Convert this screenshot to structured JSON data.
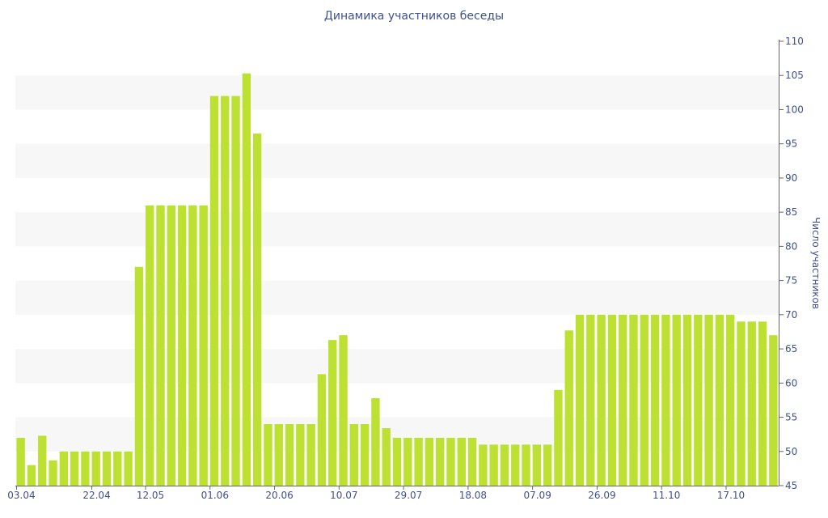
{
  "colors": {
    "bar": "#bde132",
    "band": "#f7f7f7",
    "axis_text": "#3f4f8f",
    "axis_line": "#666666"
  },
  "chart_data": {
    "type": "bar",
    "title": "Динамика участников беседы",
    "ylabel": "Число участников",
    "xlabel": "",
    "ylim": [
      45,
      110
    ],
    "y_ticks": [
      45,
      50,
      55,
      60,
      65,
      70,
      75,
      80,
      85,
      90,
      95,
      100,
      105,
      110
    ],
    "y_axis_position": "right",
    "grid": "alternating-bands",
    "x_tick_labels": [
      {
        "label": "03.04",
        "index": 0
      },
      {
        "label": "22.04",
        "index": 7
      },
      {
        "label": "12.05",
        "index": 12
      },
      {
        "label": "01.06",
        "index": 18
      },
      {
        "label": "20.06",
        "index": 24
      },
      {
        "label": "10.07",
        "index": 30
      },
      {
        "label": "29.07",
        "index": 36
      },
      {
        "label": "18.08",
        "index": 42
      },
      {
        "label": "07.09",
        "index": 48
      },
      {
        "label": "26.09",
        "index": 54
      },
      {
        "label": "11.10",
        "index": 60
      },
      {
        "label": "17.10",
        "index": 66
      }
    ],
    "values": [
      52,
      48,
      52.3,
      48.7,
      50,
      50,
      50,
      50,
      50,
      50,
      50,
      77,
      86,
      86,
      86,
      86,
      86,
      86,
      102,
      102,
      102,
      105.3,
      96.5,
      54,
      54,
      54,
      54,
      54,
      61.3,
      66.3,
      67,
      54,
      54,
      57.8,
      53.4,
      52,
      52,
      52,
      52,
      52,
      52,
      52,
      52,
      51,
      51,
      51,
      51,
      51,
      51,
      51,
      59,
      67.7,
      70,
      70,
      70,
      70,
      70,
      70,
      70,
      70,
      70,
      70,
      70,
      70,
      70,
      70,
      70,
      69,
      69,
      69,
      67
    ]
  }
}
